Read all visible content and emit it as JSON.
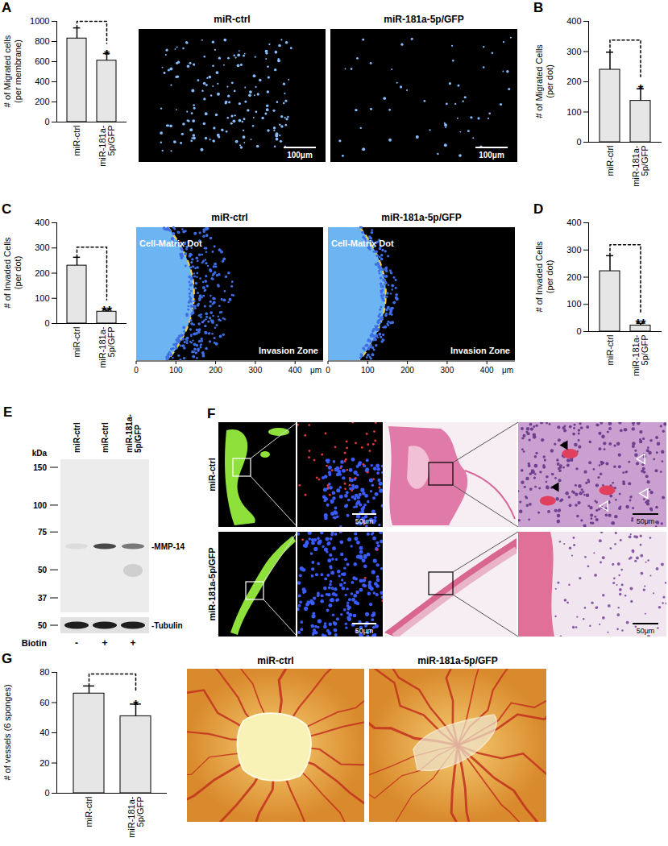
{
  "chart_data": [
    {
      "type": "bar",
      "title": "A",
      "categories": [
        "miR-ctrl",
        "miR-181a-5p/GFP"
      ],
      "values": [
        830,
        610
      ],
      "errors": [
        105,
        70
      ],
      "significance": "*",
      "y_label": "# of Migrated cells\n(per membrane)",
      "ylim": [
        0,
        1000
      ],
      "yticks": [
        0,
        200,
        400,
        600,
        800,
        1000
      ],
      "color": "#e6e6e6"
    },
    {
      "type": "bar",
      "title": "B",
      "categories": [
        "miR-ctrl",
        "miR-181a-5p/GFP"
      ],
      "values": [
        240,
        137
      ],
      "errors": [
        58,
        40
      ],
      "significance": "*",
      "y_label": "# of Migrated Cells\n(per dot)",
      "ylim": [
        0,
        400
      ],
      "yticks": [
        0,
        100,
        200,
        300,
        400
      ],
      "color": "#e6e6e6"
    },
    {
      "type": "bar",
      "title": "C",
      "categories": [
        "miR-ctrl",
        "miR-181a-5p/GFP"
      ],
      "values": [
        230,
        47
      ],
      "errors": [
        33,
        7
      ],
      "significance": "**",
      "y_label": "# of Invaded Cells\n(per dot)",
      "ylim": [
        0,
        400
      ],
      "yticks": [
        0,
        100,
        200,
        300,
        400
      ],
      "color": "#e6e6e6"
    },
    {
      "type": "bar",
      "title": "D",
      "categories": [
        "miR-ctrl",
        "miR-181a-5p/GFP"
      ],
      "values": [
        222,
        22
      ],
      "errors": [
        57,
        8
      ],
      "significance": "**",
      "y_label": "# of Invaded Cells\n(per dot)",
      "ylim": [
        0,
        400
      ],
      "yticks": [
        0,
        100,
        200,
        300,
        400
      ],
      "color": "#e6e6e6"
    },
    {
      "type": "bar",
      "title": "G",
      "categories": [
        "miR-ctrl",
        "miR-181a-5p/GFP"
      ],
      "values": [
        66,
        51
      ],
      "errors": [
        5,
        8
      ],
      "significance": "*",
      "y_label": "# of vessels (6 sponges)",
      "ylim": [
        0,
        80
      ],
      "yticks": [
        0,
        20,
        40,
        60,
        80
      ],
      "color": "#e6e6e6"
    }
  ],
  "figure": {
    "micrographs_A": {
      "labels": [
        "miR-ctrl",
        "miR-181a-5p/GFP"
      ],
      "scale_bar": "100μm"
    },
    "invasion_C": {
      "labels": [
        "miR-ctrl",
        "miR-181a-5p/GFP"
      ],
      "region_labels": [
        "Cell-Matrix Dot",
        "Invasion Zone"
      ],
      "axis_ticks": [
        0,
        100,
        200,
        300,
        400
      ],
      "axis_unit": "μm"
    },
    "blot_E": {
      "title": "E",
      "unit": "kDa",
      "markers": [
        150,
        100,
        75,
        50,
        37
      ],
      "tubulin_marker": 50,
      "lanes": [
        "miR-ctrl",
        "miR-ctrl",
        "miR-181a-5p/GFP"
      ],
      "bands": [
        "-MMP-14",
        "-Tubulin"
      ],
      "treatment": "Biotin",
      "treatment_values": [
        "-",
        "+",
        "+"
      ]
    },
    "sections_F": {
      "title": "F",
      "rows": [
        "miR-ctrl",
        "miR-181a-5p/GFP"
      ],
      "scale_bar": "50μm"
    },
    "cam_G": {
      "labels": [
        "miR-ctrl",
        "miR-181a-5p/GFP"
      ]
    }
  }
}
